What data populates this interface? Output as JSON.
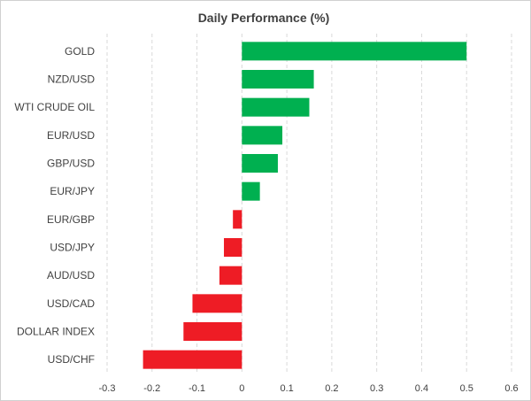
{
  "chart_data": {
    "type": "bar",
    "orientation": "horizontal",
    "title": "Daily Performance (%)",
    "categories": [
      "GOLD",
      "NZD/USD",
      "WTI CRUDE OIL",
      "EUR/USD",
      "GBP/USD",
      "EUR/JPY",
      "EUR/GBP",
      "USD/JPY",
      "AUD/USD",
      "USD/CAD",
      "DOLLAR INDEX",
      "USD/CHF"
    ],
    "values": [
      0.5,
      0.16,
      0.15,
      0.09,
      0.08,
      0.04,
      -0.02,
      -0.04,
      -0.05,
      -0.11,
      -0.13,
      -0.22
    ],
    "xlim": [
      -0.3,
      0.6
    ],
    "xticks": [
      -0.3,
      -0.2,
      -0.1,
      0,
      0.1,
      0.2,
      0.3,
      0.4,
      0.5,
      0.6
    ],
    "grid": "vertical dashed",
    "legend": "none",
    "colors": {
      "positive": "#00b050",
      "negative": "#ee1c25"
    }
  }
}
